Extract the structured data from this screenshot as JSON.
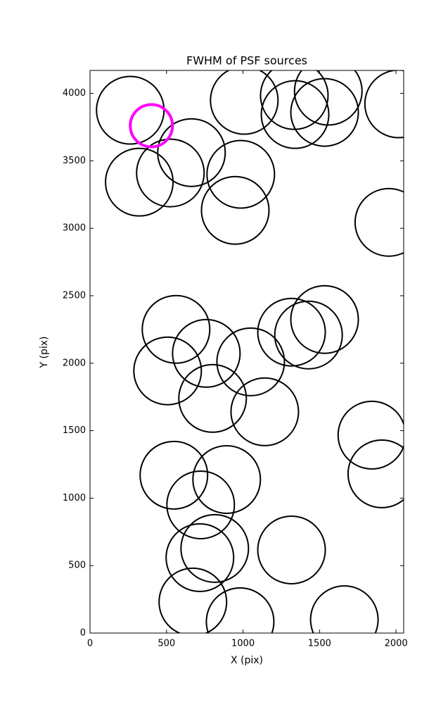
{
  "chart_data": {
    "type": "scatter",
    "title": "FWHM of PSF sources",
    "x_label": "X (pix)",
    "y_label": "Y (pix)",
    "xlim": [
      0,
      2050
    ],
    "ylim": [
      0,
      4170
    ],
    "xticks": [
      0,
      500,
      1000,
      1500,
      2000
    ],
    "yticks": [
      0,
      500,
      1000,
      1500,
      2000,
      2500,
      3000,
      3500,
      4000
    ],
    "grid": false,
    "marker": "open-circle",
    "series": [
      {
        "color": "#000000",
        "x": [
          263,
          1008,
          1340,
          1557,
          1335,
          1533,
          2017,
          663,
          525,
          322,
          985,
          949,
          1953,
          562,
          1533,
          1317,
          1428,
          760,
          1050,
          507,
          801,
          1142,
          1842,
          1907,
          548,
          893,
          723,
          815,
          718,
          1317,
          672,
          981,
          1662
        ],
        "values": [
          3875,
          3948,
          3843,
          4016,
          3984,
          3859,
          3922,
          3561,
          3410,
          3342,
          3400,
          3133,
          3044,
          2251,
          2324,
          2230,
          2209,
          2073,
          2010,
          1943,
          1739,
          1640,
          1467,
          1180,
          1170,
          1138,
          950,
          627,
          559,
          616,
          230,
          84,
          99
        ]
      },
      {
        "color": "#ff00ff",
        "x": [
          401
        ],
        "values": [
          3760
        ]
      }
    ]
  }
}
